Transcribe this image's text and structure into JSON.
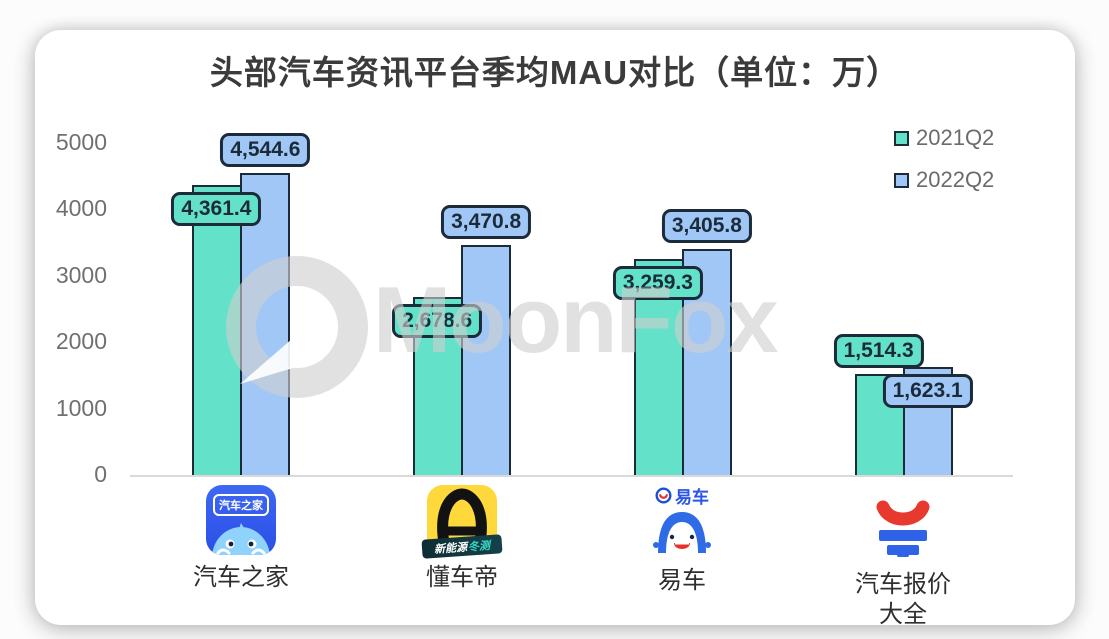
{
  "chart_data": {
    "type": "bar",
    "title": "头部汽车资讯平台季均MAU对比（单位：万）",
    "unit": "万",
    "categories": [
      "汽车之家",
      "懂车帝",
      "易车",
      "汽车报价大全"
    ],
    "series": [
      {
        "name": "2021Q2",
        "color": "#63E1C9",
        "values": [
          4361.4,
          2678.6,
          3259.3,
          1514.3
        ],
        "labels": [
          "4,361.4",
          "2,678.6",
          "3,259.3",
          "1,514.3"
        ],
        "label_placement": [
          "overlap",
          "overlap",
          "overlap",
          "above"
        ]
      },
      {
        "name": "2022Q2",
        "color": "#A0C7F6",
        "values": [
          4544.6,
          3470.8,
          3405.8,
          1623.1
        ],
        "labels": [
          "4,544.6",
          "3,470.8",
          "3,405.8",
          "1,623.1"
        ],
        "label_placement": [
          "above",
          "above",
          "above",
          "overlap"
        ]
      }
    ],
    "ylim": [
      0,
      5000
    ],
    "yticks": [
      0,
      1000,
      2000,
      3000,
      4000,
      5000
    ],
    "grid": false,
    "legend_position": "top-right",
    "bar_border_color": "#1B2B3A",
    "axis_line_color": "#D9D9D9"
  },
  "watermark": {
    "text": "MoonFox"
  },
  "x_axis": {
    "platforms": [
      {
        "icon": "autohome-app-icon",
        "badge_text": "汽车之家",
        "line1": "汽车之家",
        "line2": ""
      },
      {
        "icon": "dongchedi-app-icon",
        "banner_text_1": "新能源",
        "banner_text_2": "冬测",
        "line1": "懂车帝",
        "line2": ""
      },
      {
        "icon": "yiche-app-icon",
        "logo_text": "易车",
        "line1": "易车",
        "line2": ""
      },
      {
        "icon": "car-price-app-icon",
        "line1": "汽车报价",
        "line2": "大全"
      }
    ]
  }
}
